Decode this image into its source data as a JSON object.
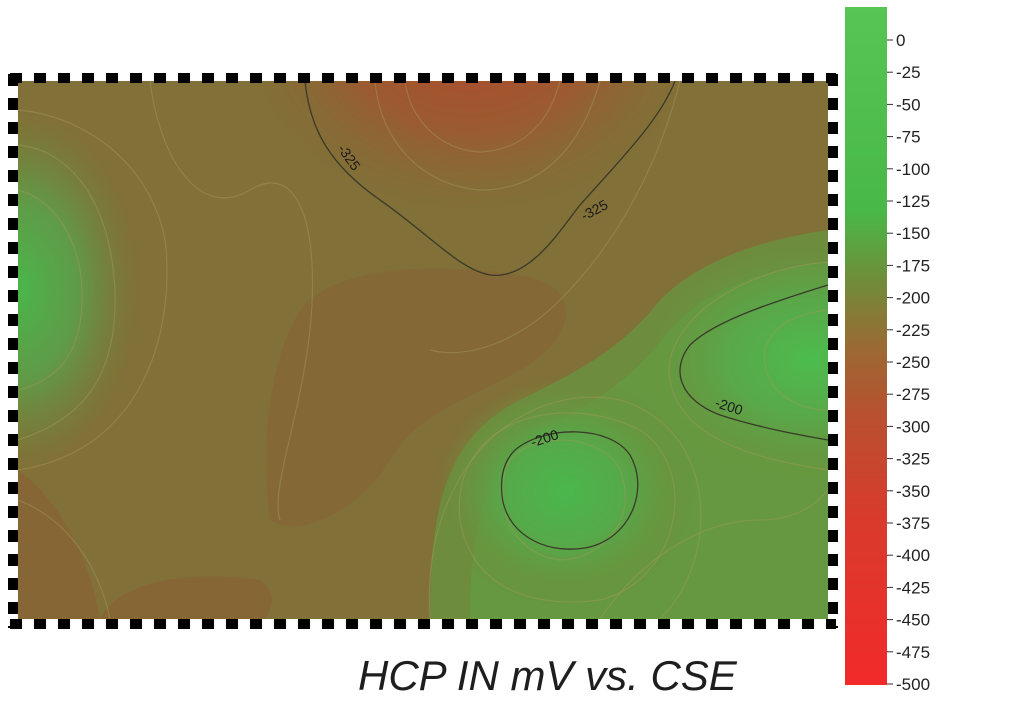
{
  "chart_data": {
    "type": "heatmap",
    "title": "HCP IN mV vs. CSE",
    "colorbar": {
      "ticks": [
        0,
        -25,
        -50,
        -75,
        -100,
        -125,
        -150,
        -175,
        -200,
        -225,
        -250,
        -275,
        -300,
        -325,
        -350,
        -375,
        -400,
        -425,
        -450,
        -475,
        -500
      ],
      "tick_labels": [
        "0",
        "-25",
        "-50",
        "-75",
        "-100",
        "-125",
        "-150",
        "-175",
        "-200",
        "-225",
        "-250",
        "-275",
        "-300",
        "-325",
        "-350",
        "-375",
        "-400",
        "-425",
        "-450",
        "-475",
        "-500"
      ],
      "range": [
        -500,
        0
      ],
      "color_high": "#4cc24c",
      "color_mid": "#8a7a36",
      "color_low": "#ee2222"
    },
    "contour_lines": [
      {
        "level": -325,
        "label": "-325"
      },
      {
        "level": -200,
        "label": "-200"
      }
    ],
    "contour_labels": [
      "-325",
      "-325",
      "-200",
      "-200"
    ],
    "grid": false,
    "legend": "right"
  }
}
